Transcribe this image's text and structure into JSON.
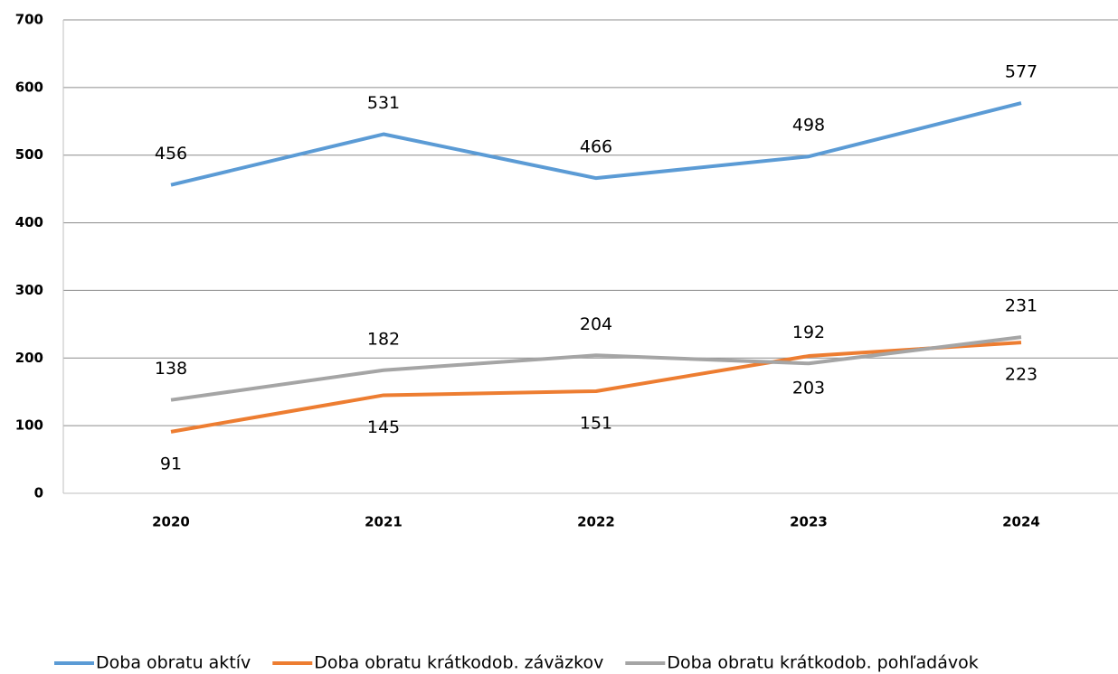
{
  "chart_data": {
    "type": "line",
    "categories": [
      "2020",
      "2021",
      "2022",
      "2023",
      "2024"
    ],
    "series": [
      {
        "name": "Doba obratu aktív",
        "color": "#5b9bd5",
        "values": [
          456,
          531,
          466,
          498,
          577
        ]
      },
      {
        "name": "Doba obratu krátkodob. záväzkov",
        "color": "#ed7d31",
        "values": [
          91,
          145,
          151,
          203,
          223
        ]
      },
      {
        "name": "Doba obratu krátkodob. pohľadávok",
        "color": "#a5a5a5",
        "values": [
          138,
          182,
          204,
          192,
          231
        ]
      }
    ],
    "ylim": [
      0,
      700
    ],
    "yticks": [
      0,
      100,
      200,
      300,
      400,
      500,
      600,
      700
    ],
    "grid": true,
    "legend": "bottom"
  }
}
